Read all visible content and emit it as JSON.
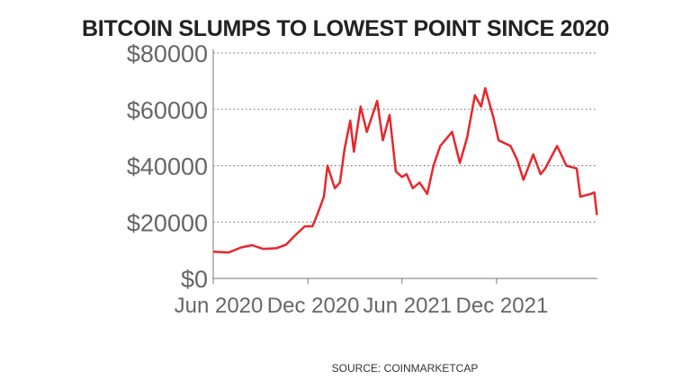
{
  "chart_data": {
    "type": "line",
    "title": "BITCOIN SLUMPS TO LOWEST POINT SINCE 2020",
    "source": "SOURCE: COINMARKETCAP",
    "xlabel": "",
    "ylabel": "",
    "ylim": [
      0,
      80000
    ],
    "xlim": [
      "2020-06-01",
      "2022-06-14"
    ],
    "y_ticks": [
      0,
      20000,
      40000,
      60000,
      80000
    ],
    "y_tick_labels": [
      "$0",
      "$20000",
      "$40000",
      "$60000",
      "$80000"
    ],
    "x_ticks": [
      "2020-06-01",
      "2020-12-01",
      "2021-06-01",
      "2021-12-01"
    ],
    "x_tick_labels": [
      "Jun 2020",
      "Dec 2020",
      "Jun 2021",
      "Dec 2021"
    ],
    "grid": "horizontal dotted",
    "line_color": "#e8262b",
    "series": [
      {
        "x": [
          "2020-06-01",
          "2020-07-01",
          "2020-07-25",
          "2020-08-15",
          "2020-09-05",
          "2020-10-01",
          "2020-10-20",
          "2020-11-05",
          "2020-11-25",
          "2020-12-10",
          "2020-12-20",
          "2021-01-01",
          "2021-01-08",
          "2021-01-22",
          "2021-02-01",
          "2021-02-10",
          "2021-02-21",
          "2021-02-28",
          "2021-03-13",
          "2021-03-25",
          "2021-04-14",
          "2021-04-25",
          "2021-05-08",
          "2021-05-20",
          "2021-06-01",
          "2021-06-10",
          "2021-06-22",
          "2021-07-05",
          "2021-07-20",
          "2021-08-01",
          "2021-08-14",
          "2021-09-06",
          "2021-09-21",
          "2021-10-05",
          "2021-10-20",
          "2021-11-01",
          "2021-11-09",
          "2021-11-25",
          "2021-12-05",
          "2021-12-28",
          "2022-01-10",
          "2022-01-22",
          "2022-02-10",
          "2022-02-24",
          "2022-03-05",
          "2022-03-28",
          "2022-04-15",
          "2022-05-05",
          "2022-05-12",
          "2022-06-01",
          "2022-06-08",
          "2022-06-13"
        ],
        "values": [
          9500,
          9200,
          11000,
          11800,
          10500,
          10700,
          12000,
          15000,
          18500,
          18500,
          23000,
          29000,
          40000,
          32000,
          34000,
          46000,
          56000,
          45000,
          61000,
          52000,
          63000,
          49000,
          58000,
          38000,
          36000,
          37000,
          32000,
          34000,
          30000,
          40000,
          47000,
          52000,
          41000,
          50000,
          65000,
          61000,
          67500,
          57000,
          49000,
          47000,
          42000,
          35000,
          44000,
          37000,
          39000,
          47000,
          40000,
          39000,
          29000,
          30000,
          30500,
          22500
        ]
      }
    ]
  }
}
